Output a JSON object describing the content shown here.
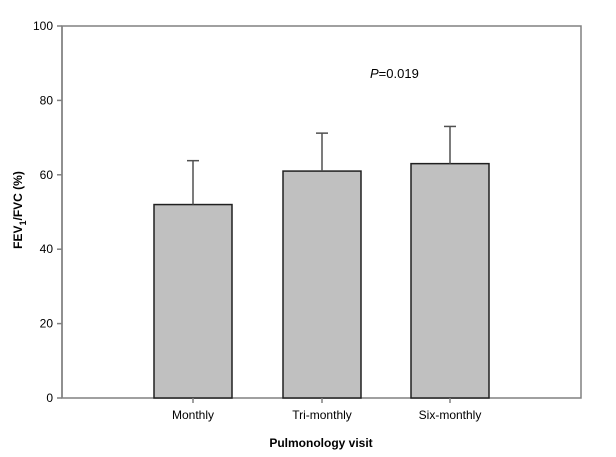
{
  "chart_data": {
    "type": "bar",
    "categories": [
      "Monthly",
      "Tri-monthly",
      "Six-monthly"
    ],
    "values": [
      52,
      61,
      63
    ],
    "error_bars": [
      11.8,
      10.2,
      10
    ],
    "xlabel": "Pulmonology visit",
    "ylabel": {
      "prefix": "FEV",
      "subscript": "1",
      "suffix": "/FVC (%)"
    },
    "ylim": [
      0,
      100
    ],
    "yticks": [
      "0",
      "20",
      "40",
      "60",
      "80",
      "100"
    ],
    "annotation": {
      "italic": "P",
      "text": "=0.019"
    },
    "grid": false,
    "legend": "none",
    "colors": {
      "bar_fill": "#c0c0c0",
      "bar_stroke": "#202020",
      "axis": "#808080"
    }
  }
}
